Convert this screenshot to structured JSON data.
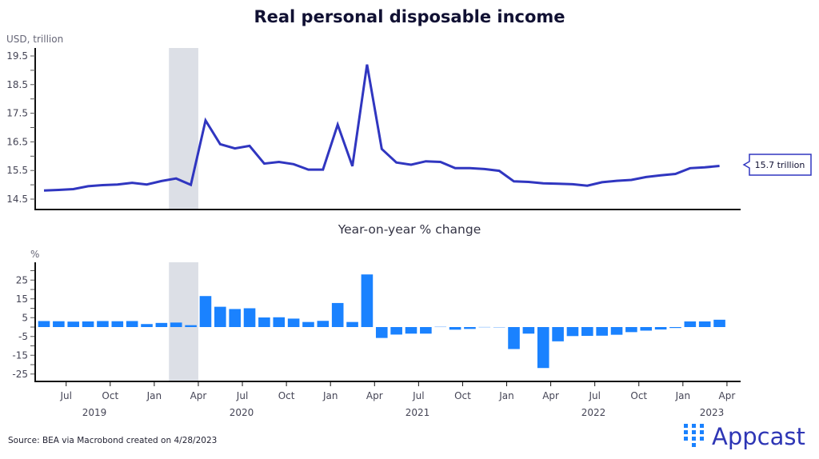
{
  "chart_data": [
    {
      "type": "line",
      "title": "Real personal disposable income",
      "ylabel": "USD, trillion",
      "ylim": [
        14.14,
        19.8
      ],
      "yticks": [
        "19.5",
        "18.5",
        "17.5",
        "16.5",
        "15.5",
        "14.5"
      ],
      "x_start": "May 2019",
      "x_end": "Mar 2023",
      "shaded_period": [
        "Feb 2020",
        "Mar 2020"
      ],
      "callout": "15.7 trillion",
      "color": "#3036c0",
      "values": [
        14.8,
        14.82,
        14.85,
        14.95,
        14.99,
        15.01,
        15.07,
        15.01,
        15.13,
        15.22,
        15.0,
        17.25,
        16.42,
        16.27,
        16.36,
        15.74,
        15.8,
        15.72,
        15.53,
        15.53,
        17.1,
        15.65,
        19.2,
        16.25,
        15.78,
        15.7,
        15.82,
        15.8,
        15.58,
        15.58,
        15.55,
        15.49,
        15.12,
        15.1,
        15.05,
        15.04,
        15.02,
        14.97,
        15.09,
        15.14,
        15.17,
        15.27,
        15.33,
        15.38,
        15.58,
        15.61,
        15.66
      ]
    },
    {
      "type": "bar",
      "title": "Year-on-year % change",
      "ylabel": "%",
      "ylim": [
        -29,
        34
      ],
      "yticks": [
        "25",
        "15",
        "5",
        "-5",
        "-15",
        "-25"
      ],
      "color": "#1a82ff",
      "x_start": "May 2019",
      "x_end": "Mar 2023",
      "values": [
        3.2,
        3.1,
        2.9,
        3.0,
        3.2,
        3.1,
        3.2,
        1.6,
        2.2,
        2.4,
        1.0,
        16.5,
        10.8,
        9.6,
        10.0,
        5.1,
        5.2,
        4.5,
        2.7,
        3.3,
        12.8,
        2.7,
        28.0,
        -5.8,
        -4.0,
        -3.5,
        -3.5,
        0.3,
        -1.4,
        -1.0,
        0.1,
        -0.3,
        -11.7,
        -3.5,
        -21.8,
        -7.6,
        -4.8,
        -4.7,
        -4.6,
        -4.1,
        -2.7,
        -1.9,
        -1.3,
        -0.5,
        3.0,
        3.0,
        3.9
      ],
      "xtick_labels": [
        "Jul",
        "Oct",
        "Jan",
        "Apr",
        "Jul",
        "Oct",
        "Jan",
        "Apr",
        "Jul",
        "Oct",
        "Jan",
        "Apr",
        "Jul",
        "Oct",
        "Jan",
        "Apr"
      ],
      "year_labels": [
        "2019",
        "2020",
        "2021",
        "2022",
        "2023"
      ]
    }
  ],
  "source": "Source: BEA via Macrobond created on 4/28/2023",
  "logo": "Appcast"
}
